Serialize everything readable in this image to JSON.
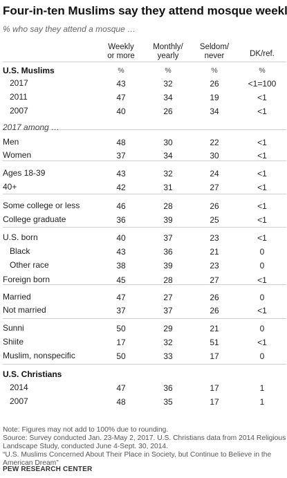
{
  "title": "Four-in-ten  Muslims say they attend mosque weekly",
  "subtitle": "% who say they attend a mosque …",
  "columns": [
    {
      "line1": "Weekly",
      "line2": "or more"
    },
    {
      "line1": "Monthly/",
      "line2": "yearly"
    },
    {
      "line1": "Seldom/",
      "line2": "never"
    },
    {
      "line1": "DK/ref.",
      "line2": ""
    }
  ],
  "pct_symbol": "%",
  "rows": [
    {
      "label": "U.S. Muslims",
      "style": "bold",
      "values": [
        "%",
        "%",
        "%",
        "%"
      ]
    },
    {
      "label": "2017",
      "indent": 1,
      "values": [
        "43",
        "32",
        "26",
        "<1=100"
      ]
    },
    {
      "label": "2011",
      "indent": 1,
      "values": [
        "47",
        "34",
        "19",
        "<1"
      ]
    },
    {
      "label": "2007",
      "indent": 1,
      "values": [
        "40",
        "26",
        "34",
        "<1"
      ]
    },
    {
      "label": "2017 among …",
      "style": "ital",
      "values": []
    },
    {
      "label": "Men",
      "values": [
        "48",
        "30",
        "22",
        "<1"
      ]
    },
    {
      "label": "Women",
      "values": [
        "37",
        "34",
        "30",
        "<1"
      ]
    },
    {
      "label": "Ages 18-39",
      "values": [
        "43",
        "32",
        "24",
        "<1"
      ]
    },
    {
      "label": "40+",
      "values": [
        "42",
        "31",
        "27",
        "<1"
      ]
    },
    {
      "label": "Some college or less",
      "values": [
        "46",
        "28",
        "26",
        "<1"
      ]
    },
    {
      "label": "College graduate",
      "values": [
        "36",
        "39",
        "25",
        "<1"
      ]
    },
    {
      "label": "U.S. born",
      "values": [
        "40",
        "37",
        "23",
        "<1"
      ]
    },
    {
      "label": "Black",
      "indent": 1,
      "values": [
        "43",
        "36",
        "21",
        "0"
      ]
    },
    {
      "label": "Other race",
      "indent": 1,
      "values": [
        "38",
        "39",
        "23",
        "0"
      ]
    },
    {
      "label": "Foreign born",
      "values": [
        "45",
        "28",
        "27",
        "<1"
      ]
    },
    {
      "label": "Married",
      "values": [
        "47",
        "27",
        "26",
        "0"
      ]
    },
    {
      "label": "Not married",
      "values": [
        "37",
        "37",
        "26",
        "<1"
      ]
    },
    {
      "label": "Sunni",
      "values": [
        "50",
        "29",
        "21",
        "0"
      ]
    },
    {
      "label": "Shiite",
      "values": [
        "17",
        "32",
        "51",
        "<1"
      ]
    },
    {
      "label": "Muslim, nonspecific",
      "values": [
        "50",
        "33",
        "17",
        "0"
      ]
    },
    {
      "label": "U.S. Christians",
      "style": "bold",
      "values": []
    },
    {
      "label": "2014",
      "indent": 1,
      "values": [
        "47",
        "36",
        "17",
        "1"
      ]
    },
    {
      "label": "2007",
      "indent": 1,
      "values": [
        "48",
        "35",
        "17",
        "1"
      ]
    }
  ],
  "notes": [
    "Note: Figures may not add to 100% due to rounding.",
    "Source: Survey conducted Jan. 23-May 2, 2017. U.S. Christians data from 2014 Religious",
    "Landscape Study, conducted June 4-Sept. 30, 2014.",
    "“U.S. Muslims Concerned About Their Place in Society, but Continue to Believe in the",
    "American Dream”"
  ],
  "source_org": "PEW RESEARCH CENTER",
  "chart_data": {
    "type": "table",
    "title": "Four-in-ten  Muslims say they attend mosque weekly",
    "subtitle": "% who say they attend a mosque …",
    "columns": [
      "Weekly or more",
      "Monthly/ yearly",
      "Seldom/ never",
      "DK/ref."
    ],
    "groups": [
      {
        "name": "U.S. Muslims",
        "rows": [
          {
            "label": "2017",
            "values": [
              "43",
              "32",
              "26",
              "<1=100"
            ]
          },
          {
            "label": "2011",
            "values": [
              "47",
              "34",
              "19",
              "<1"
            ]
          },
          {
            "label": "2007",
            "values": [
              "40",
              "26",
              "34",
              "<1"
            ]
          }
        ]
      },
      {
        "name": "2017 among …",
        "rows": [
          {
            "label": "Men",
            "values": [
              "48",
              "30",
              "22",
              "<1"
            ]
          },
          {
            "label": "Women",
            "values": [
              "37",
              "34",
              "30",
              "<1"
            ]
          },
          {
            "label": "Ages 18-39",
            "values": [
              "43",
              "32",
              "24",
              "<1"
            ]
          },
          {
            "label": "40+",
            "values": [
              "42",
              "31",
              "27",
              "<1"
            ]
          },
          {
            "label": "Some college or less",
            "values": [
              "46",
              "28",
              "26",
              "<1"
            ]
          },
          {
            "label": "College graduate",
            "values": [
              "36",
              "39",
              "25",
              "<1"
            ]
          },
          {
            "label": "U.S. born",
            "values": [
              "40",
              "37",
              "23",
              "<1"
            ]
          },
          {
            "label": "Black",
            "values": [
              "43",
              "36",
              "21",
              "0"
            ]
          },
          {
            "label": "Other race",
            "values": [
              "38",
              "39",
              "23",
              "0"
            ]
          },
          {
            "label": "Foreign born",
            "values": [
              "45",
              "28",
              "27",
              "<1"
            ]
          },
          {
            "label": "Married",
            "values": [
              "47",
              "27",
              "26",
              "0"
            ]
          },
          {
            "label": "Not married",
            "values": [
              "37",
              "37",
              "26",
              "<1"
            ]
          },
          {
            "label": "Sunni",
            "values": [
              "50",
              "29",
              "21",
              "0"
            ]
          },
          {
            "label": "Shiite",
            "values": [
              "17",
              "32",
              "51",
              "<1"
            ]
          },
          {
            "label": "Muslim, nonspecific",
            "values": [
              "50",
              "33",
              "17",
              "0"
            ]
          }
        ]
      },
      {
        "name": "U.S. Christians",
        "rows": [
          {
            "label": "2014",
            "values": [
              "47",
              "36",
              "17",
              "1"
            ]
          },
          {
            "label": "2007",
            "values": [
              "48",
              "35",
              "17",
              "1"
            ]
          }
        ]
      }
    ]
  }
}
